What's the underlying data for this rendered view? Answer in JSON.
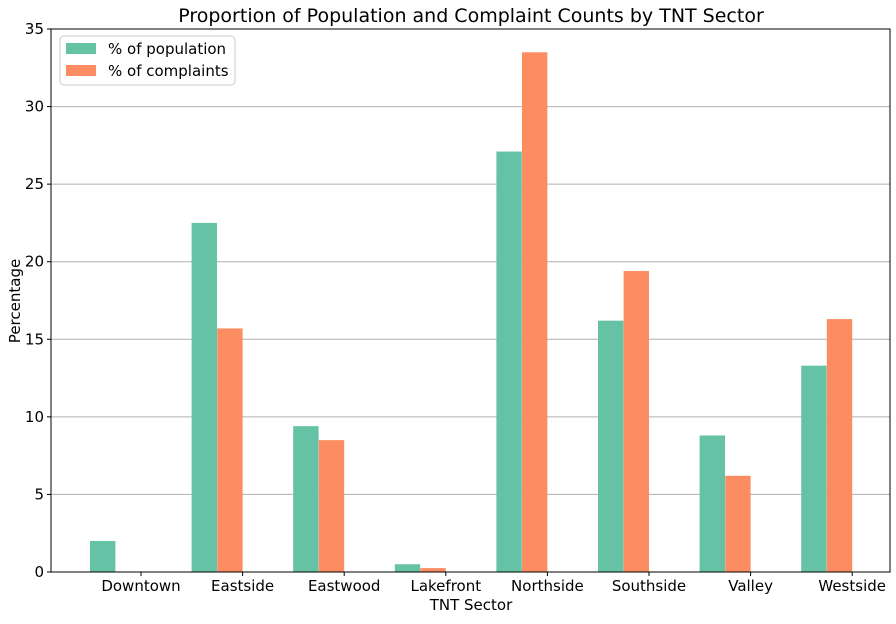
{
  "chart_data": {
    "type": "bar",
    "title": "Proportion of Population and Complaint Counts by TNT Sector",
    "xlabel": "TNT Sector",
    "ylabel": "Percentage",
    "ylim": [
      0,
      35
    ],
    "yticks": [
      0,
      5,
      10,
      15,
      20,
      25,
      30,
      35
    ],
    "grid": "y",
    "legend_position": "top-left",
    "categories": [
      "Downtown",
      "Eastside",
      "Eastwood",
      "Lakefront",
      "Northside",
      "Southside",
      "Valley",
      "Westside"
    ],
    "series": [
      {
        "name": "% of population",
        "color": "#66c2a5",
        "values": [
          2.0,
          22.5,
          9.4,
          0.5,
          27.1,
          16.2,
          8.8,
          13.3
        ]
      },
      {
        "name": "% of complaints",
        "color": "#fc8d62",
        "values": [
          0.0,
          15.7,
          8.5,
          0.25,
          33.5,
          19.4,
          6.2,
          16.3
        ]
      }
    ]
  }
}
